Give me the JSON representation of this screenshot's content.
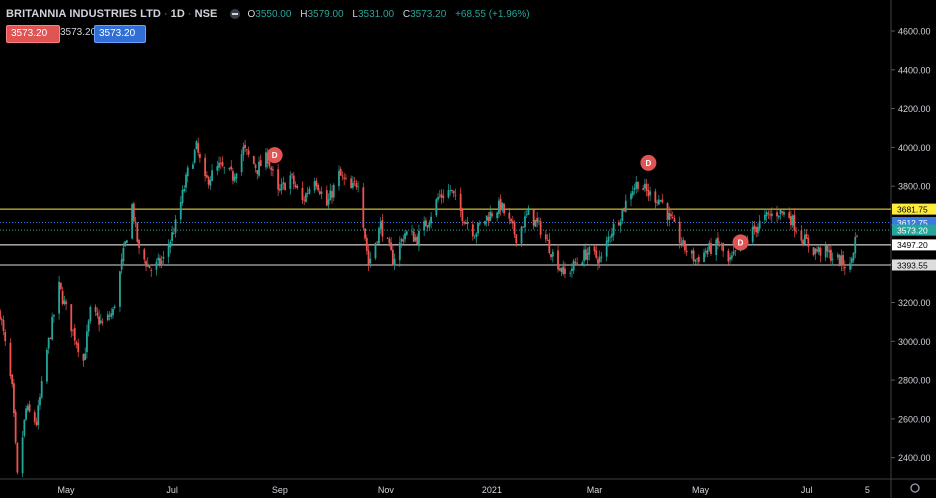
{
  "header": {
    "symbol": "BRITANNIA INDUSTRIES LTD",
    "interval": "1D",
    "exchange": "NSE",
    "open_label": "O",
    "open": "3550.00",
    "high_label": "H",
    "high": "3579.00",
    "low_label": "L",
    "low": "3531.00",
    "close_label": "C",
    "close": "3573.20",
    "change": "+68.55 (+1.96%)"
  },
  "price_boxes": [
    "3573.20",
    "3573.20",
    "3573.20"
  ],
  "colors": {
    "up": "#26a69a",
    "down": "#ef5350",
    "background": "#000000",
    "text": "#d1d4dc",
    "marker": "#e05454"
  },
  "chart_data": {
    "type": "candlestick",
    "y_axis": {
      "ticks": [
        2400,
        2600,
        2800,
        3000,
        3200,
        3400,
        3600,
        3800,
        4000,
        4200,
        4400,
        4600
      ],
      "range": [
        2290,
        4760
      ]
    },
    "x_axis": {
      "ticks": [
        "May",
        "Jul",
        "Sep",
        "Nov",
        "2021",
        "Mar",
        "May",
        "Jul",
        "5"
      ]
    },
    "date_range": [
      "2020-03-24",
      "2021-07-30"
    ],
    "path": [
      [
        "2020-03-24",
        3150
      ],
      [
        "2020-03-31",
        2750
      ],
      [
        "2020-04-03",
        2300
      ],
      [
        "2020-04-08",
        2650
      ],
      [
        "2020-04-14",
        2580
      ],
      [
        "2020-04-20",
        2950
      ],
      [
        "2020-04-27",
        3280
      ],
      [
        "2020-05-05",
        3050
      ],
      [
        "2020-05-11",
        2900
      ],
      [
        "2020-05-15",
        3150
      ],
      [
        "2020-05-22",
        3090
      ],
      [
        "2020-05-28",
        3150
      ],
      [
        "2020-06-03",
        3450
      ],
      [
        "2020-06-08",
        3700
      ],
      [
        "2020-06-12",
        3460
      ],
      [
        "2020-06-19",
        3370
      ],
      [
        "2020-06-26",
        3420
      ],
      [
        "2020-07-03",
        3600
      ],
      [
        "2020-07-10",
        3870
      ],
      [
        "2020-07-15",
        4000
      ],
      [
        "2020-07-20",
        3820
      ],
      [
        "2020-07-28",
        3900
      ],
      [
        "2020-08-05",
        3850
      ],
      [
        "2020-08-11",
        3990
      ],
      [
        "2020-08-19",
        3890
      ],
      [
        "2020-08-25",
        3950
      ],
      [
        "2020-08-31",
        3760
      ],
      [
        "2020-09-07",
        3850
      ],
      [
        "2020-09-14",
        3720
      ],
      [
        "2020-09-21",
        3850
      ],
      [
        "2020-09-28",
        3700
      ],
      [
        "2020-10-05",
        3860
      ],
      [
        "2020-10-12",
        3780
      ],
      [
        "2020-10-16",
        3830
      ],
      [
        "2020-10-22",
        3400
      ],
      [
        "2020-10-29",
        3600
      ],
      [
        "2020-11-05",
        3420
      ],
      [
        "2020-11-12",
        3560
      ],
      [
        "2020-11-19",
        3530
      ],
      [
        "2020-11-26",
        3640
      ],
      [
        "2020-12-01",
        3740
      ],
      [
        "2020-12-08",
        3780
      ],
      [
        "2020-12-15",
        3650
      ],
      [
        "2020-12-22",
        3560
      ],
      [
        "2020-12-29",
        3640
      ],
      [
        "2021-01-06",
        3700
      ],
      [
        "2021-01-15",
        3540
      ],
      [
        "2021-01-22",
        3660
      ],
      [
        "2021-01-29",
        3580
      ],
      [
        "2021-02-05",
        3450
      ],
      [
        "2021-02-12",
        3340
      ],
      [
        "2021-02-19",
        3410
      ],
      [
        "2021-02-25",
        3460
      ],
      [
        "2021-03-05",
        3420
      ],
      [
        "2021-03-10",
        3560
      ],
      [
        "2021-03-16",
        3650
      ],
      [
        "2021-03-22",
        3780
      ],
      [
        "2021-03-26",
        3820
      ],
      [
        "2021-04-01",
        3760
      ],
      [
        "2021-04-08",
        3730
      ],
      [
        "2021-04-14",
        3620
      ],
      [
        "2021-04-21",
        3490
      ],
      [
        "2021-04-28",
        3420
      ],
      [
        "2021-05-05",
        3470
      ],
      [
        "2021-05-12",
        3500
      ],
      [
        "2021-05-17",
        3400
      ],
      [
        "2021-05-24",
        3480
      ],
      [
        "2021-06-01",
        3580
      ],
      [
        "2021-06-08",
        3640
      ],
      [
        "2021-06-15",
        3670
      ],
      [
        "2021-06-21",
        3650
      ],
      [
        "2021-06-28",
        3540
      ],
      [
        "2021-07-05",
        3470
      ],
      [
        "2021-07-12",
        3460
      ],
      [
        "2021-07-19",
        3420
      ],
      [
        "2021-07-26",
        3380
      ],
      [
        "2021-07-30",
        3573
      ]
    ],
    "levels": [
      {
        "value": 3681.75,
        "color": "#ffeb3b",
        "label": "3681.75"
      },
      {
        "value": 3612.75,
        "color": "#3a7be0",
        "label": "3612.75"
      },
      {
        "value": 3573.2,
        "color": "#26a69a",
        "label": "3573.20"
      },
      {
        "value": 3497.2,
        "color": "#ffffff",
        "label": "3497.20"
      },
      {
        "value": 3393.55,
        "color": "#dddddd",
        "label": "3393.55"
      }
    ],
    "markers": [
      {
        "date": "2020-08-29",
        "price": 3960,
        "label": "D"
      },
      {
        "date": "2021-04-01",
        "price": 3920,
        "label": "D"
      },
      {
        "date": "2021-05-24",
        "price": 3510,
        "label": "D"
      }
    ]
  }
}
